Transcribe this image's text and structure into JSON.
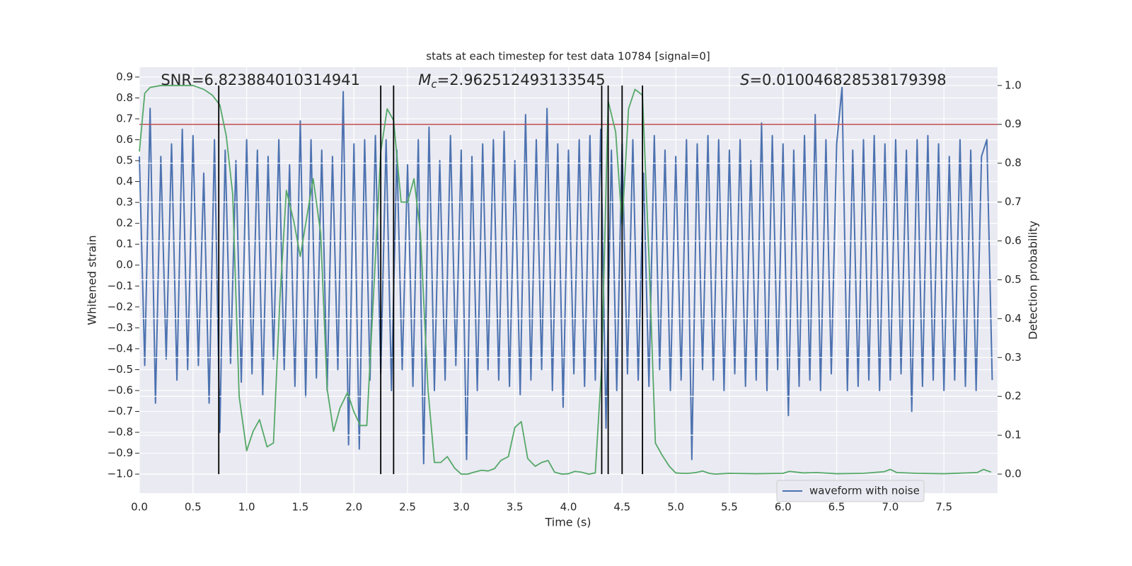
{
  "chart_data": {
    "type": "line",
    "title": "stats at each timestep for test data 10784 [signal=0]",
    "xlabel": "Time (s)",
    "ylabel": "Whitened strain",
    "y2label": "Detection probability",
    "xlim": [
      0,
      8.0
    ],
    "ylim": [
      -1.091,
      0.947
    ],
    "y2lim": [
      -0.049,
      1.047
    ],
    "xticks": [
      {
        "value": 0,
        "label": "0.0"
      },
      {
        "value": 0.5,
        "label": "0.5"
      },
      {
        "value": 1,
        "label": "1.0"
      },
      {
        "value": 1.5,
        "label": "1.5"
      },
      {
        "value": 2,
        "label": "2.0"
      },
      {
        "value": 2.5,
        "label": "2.5"
      },
      {
        "value": 3,
        "label": "3.0"
      },
      {
        "value": 3.5,
        "label": "3.5"
      },
      {
        "value": 4,
        "label": "4.0"
      },
      {
        "value": 4.5,
        "label": "4.5"
      },
      {
        "value": 5,
        "label": "5.0"
      },
      {
        "value": 5.5,
        "label": "5.5"
      },
      {
        "value": 6,
        "label": "6.0"
      },
      {
        "value": 6.5,
        "label": "6.5"
      },
      {
        "value": 7,
        "label": "7.0"
      },
      {
        "value": 7.5,
        "label": "7.5"
      }
    ],
    "yticks": [
      {
        "value": -1.0,
        "label": "−1.0"
      },
      {
        "value": -0.9,
        "label": "−0.9"
      },
      {
        "value": -0.8,
        "label": "−0.8"
      },
      {
        "value": -0.7,
        "label": "−0.7"
      },
      {
        "value": -0.6,
        "label": "−0.6"
      },
      {
        "value": -0.5,
        "label": "−0.5"
      },
      {
        "value": -0.4,
        "label": "−0.4"
      },
      {
        "value": -0.3,
        "label": "−0.3"
      },
      {
        "value": -0.2,
        "label": "−0.2"
      },
      {
        "value": -0.1,
        "label": "−0.1"
      },
      {
        "value": 0,
        "label": "0.0"
      },
      {
        "value": 0.1,
        "label": "0.1"
      },
      {
        "value": 0.2,
        "label": "0.2"
      },
      {
        "value": 0.3,
        "label": "0.3"
      },
      {
        "value": 0.4,
        "label": "0.4"
      },
      {
        "value": 0.5,
        "label": "0.5"
      },
      {
        "value": 0.6,
        "label": "0.6"
      },
      {
        "value": 0.7,
        "label": "0.7"
      },
      {
        "value": 0.8,
        "label": "0.8"
      },
      {
        "value": 0.9,
        "label": "0.9"
      }
    ],
    "y2ticks": [
      {
        "value": 0,
        "label": "0.0"
      },
      {
        "value": 0.1,
        "label": "0.1"
      },
      {
        "value": 0.2,
        "label": "0.2"
      },
      {
        "value": 0.3,
        "label": "0.3"
      },
      {
        "value": 0.4,
        "label": "0.4"
      },
      {
        "value": 0.5,
        "label": "0.5"
      },
      {
        "value": 0.6,
        "label": "0.6"
      },
      {
        "value": 0.7,
        "label": "0.7"
      },
      {
        "value": 0.8,
        "label": "0.8"
      },
      {
        "value": 0.9,
        "label": "0.9"
      },
      {
        "value": 1,
        "label": "1.0"
      }
    ],
    "grid": true,
    "legend": "lower right",
    "series": [
      {
        "name": "waveform with noise",
        "color": "#4c72b0",
        "x": [
          0,
          0.05,
          0.1,
          0.15,
          0.2,
          0.25,
          0.3,
          0.35,
          0.4,
          0.45,
          0.5,
          0.55,
          0.6,
          0.65,
          0.7,
          0.75,
          0.8,
          0.85,
          0.9,
          0.95,
          1,
          1.05,
          1.1,
          1.15,
          1.2,
          1.25,
          1.3,
          1.35,
          1.4,
          1.45,
          1.5,
          1.55,
          1.6,
          1.65,
          1.7,
          1.75,
          1.8,
          1.85,
          1.9,
          1.95,
          2,
          2.05,
          2.1,
          2.15,
          2.2,
          2.25,
          2.3,
          2.35,
          2.4,
          2.45,
          2.5,
          2.55,
          2.6,
          2.65,
          2.7,
          2.75,
          2.8,
          2.85,
          2.9,
          2.95,
          3,
          3.05,
          3.1,
          3.15,
          3.2,
          3.25,
          3.3,
          3.35,
          3.4,
          3.45,
          3.5,
          3.55,
          3.6,
          3.65,
          3.7,
          3.75,
          3.8,
          3.85,
          3.9,
          3.95,
          4,
          4.05,
          4.1,
          4.15,
          4.2,
          4.25,
          4.3,
          4.35,
          4.4,
          4.45,
          4.5,
          4.55,
          4.6,
          4.65,
          4.7,
          4.75,
          4.8,
          4.85,
          4.9,
          4.95,
          5,
          5.05,
          5.1,
          5.15,
          5.2,
          5.25,
          5.3,
          5.35,
          5.4,
          5.45,
          5.5,
          5.55,
          5.6,
          5.65,
          5.7,
          5.75,
          5.8,
          5.85,
          5.9,
          5.95,
          6,
          6.05,
          6.1,
          6.15,
          6.2,
          6.25,
          6.3,
          6.35,
          6.4,
          6.45,
          6.5,
          6.55,
          6.6,
          6.65,
          6.7,
          6.75,
          6.8,
          6.85,
          6.9,
          6.95,
          7,
          7.05,
          7.1,
          7.15,
          7.2,
          7.25,
          7.3,
          7.35,
          7.4,
          7.45,
          7.5,
          7.55,
          7.6,
          7.65,
          7.7,
          7.75,
          7.8,
          7.85,
          7.9,
          7.95
        ],
        "values": [
          0.52,
          -0.48,
          0.75,
          -0.66,
          0.52,
          -0.45,
          0.58,
          -0.55,
          0.65,
          -0.5,
          0.62,
          -0.48,
          0.44,
          -0.66,
          0.6,
          -0.8,
          0.55,
          -0.47,
          0.5,
          -0.56,
          0.6,
          -0.52,
          0.55,
          -0.62,
          0.52,
          -0.45,
          0.6,
          -0.5,
          0.48,
          -0.58,
          0.69,
          -0.63,
          0.6,
          -0.54,
          0.55,
          -0.6,
          0.52,
          -0.5,
          0.83,
          -0.86,
          0.58,
          -0.88,
          0.6,
          -0.55,
          0.62,
          -0.52,
          0.6,
          -0.6,
          0.55,
          -0.5,
          0.48,
          -0.58,
          0.6,
          -0.95,
          0.66,
          -0.6,
          0.5,
          -0.55,
          0.62,
          -0.48,
          0.55,
          -0.93,
          0.52,
          -0.6,
          0.58,
          -0.5,
          0.6,
          -0.55,
          0.64,
          -0.58,
          0.5,
          -0.62,
          0.72,
          -0.55,
          0.6,
          -0.5,
          0.75,
          -0.6,
          0.58,
          -0.68,
          0.55,
          -0.52,
          0.6,
          -0.58,
          0.62,
          -0.55,
          0.65,
          -0.78,
          0.55,
          -0.6,
          0.58,
          -0.52,
          0.6,
          -0.55,
          0.44,
          -0.58,
          0.62,
          -0.5,
          0.55,
          -0.6,
          0.52,
          -0.55,
          0.6,
          -0.93,
          0.58,
          -0.5,
          0.62,
          -0.55,
          0.6,
          -0.6,
          0.55,
          -0.52,
          0.6,
          -0.58,
          0.5,
          -0.55,
          0.68,
          -0.6,
          0.62,
          -0.5,
          0.58,
          -0.72,
          0.55,
          -0.58,
          0.62,
          -0.55,
          0.72,
          -0.6,
          0.6,
          -0.52,
          0.58,
          0.85,
          -0.6,
          0.55,
          -0.58,
          0.6,
          -0.55,
          0.62,
          -0.6,
          0.58,
          -0.55,
          0.6,
          -0.52,
          0.55,
          -0.7,
          0.6,
          -0.58,
          0.62,
          -0.55,
          0.58,
          -0.6,
          0.52,
          -0.55,
          0.6,
          -0.58,
          0.55,
          -0.6,
          0.52,
          0.6,
          -0.55
        ]
      },
      {
        "color": "#55a868",
        "axis": "y2",
        "x": [
          0,
          0.05,
          0.1,
          0.2,
          0.3,
          0.4,
          0.5,
          0.6,
          0.68,
          0.75,
          0.81,
          0.87,
          0.93,
          1,
          1.06,
          1.12,
          1.19,
          1.25,
          1.31,
          1.37,
          1.44,
          1.5,
          1.56,
          1.62,
          1.69,
          1.75,
          1.81,
          1.87,
          1.94,
          2,
          2.06,
          2.12,
          2.19,
          2.25,
          2.31,
          2.37,
          2.44,
          2.5,
          2.56,
          2.62,
          2.69,
          2.75,
          2.81,
          2.87,
          2.94,
          3,
          3.06,
          3.12,
          3.19,
          3.25,
          3.31,
          3.37,
          3.44,
          3.5,
          3.56,
          3.62,
          3.69,
          3.75,
          3.81,
          3.87,
          3.94,
          4,
          4.06,
          4.12,
          4.19,
          4.25,
          4.31,
          4.37,
          4.44,
          4.5,
          4.56,
          4.62,
          4.69,
          4.75,
          4.81,
          4.87,
          4.94,
          5,
          5.06,
          5.12,
          5.19,
          5.25,
          5.31,
          5.37,
          5.5,
          5.75,
          6,
          6.06,
          6.19,
          6.31,
          6.5,
          6.75,
          6.94,
          7,
          7.06,
          7.25,
          7.5,
          7.81,
          7.87,
          7.94
        ],
        "values": [
          0.83,
          0.98,
          0.995,
          1,
          1,
          1,
          1,
          0.99,
          0.975,
          0.95,
          0.87,
          0.72,
          0.2,
          0.06,
          0.11,
          0.14,
          0.07,
          0.08,
          0.45,
          0.73,
          0.65,
          0.56,
          0.66,
          0.76,
          0.62,
          0.22,
          0.11,
          0.17,
          0.21,
          0.16,
          0.125,
          0.125,
          0.5,
          0.83,
          0.94,
          0.91,
          0.7,
          0.7,
          0.76,
          0.62,
          0.22,
          0.03,
          0.03,
          0.045,
          0.015,
          0,
          0,
          0.005,
          0.01,
          0.008,
          0.014,
          0.035,
          0.045,
          0.12,
          0.135,
          0.04,
          0.02,
          0.03,
          0.035,
          0.005,
          0,
          0.001,
          0.007,
          0.005,
          0,
          0.003,
          0.28,
          0.96,
          0.88,
          0.64,
          0.94,
          0.99,
          0.975,
          0.56,
          0.08,
          0.05,
          0.02,
          0.003,
          0.002,
          0.002,
          0.004,
          0.008,
          0.002,
          0,
          0.002,
          0.001,
          0.002,
          0.007,
          0.003,
          0.004,
          0.001,
          0.002,
          0.006,
          0.012,
          0.004,
          0.002,
          0.001,
          0.004,
          0.012,
          0.005
        ]
      }
    ],
    "hline": {
      "value": 0.9,
      "axis": "y2",
      "color": "#c44e52"
    },
    "vlines": {
      "values": [
        0.74,
        2.25,
        2.37,
        4.31,
        4.37,
        4.5,
        4.69
      ],
      "color": "#000000"
    },
    "annotations": [
      {
        "x": 0.2,
        "text": "SNR=6.823884010314941"
      },
      {
        "x": 2.6,
        "symbol": "M",
        "sub": "c",
        "text": "=2.962512493133545"
      },
      {
        "x": 5.6,
        "symbol": "S",
        "text": "=0.010046828538179398"
      }
    ]
  }
}
